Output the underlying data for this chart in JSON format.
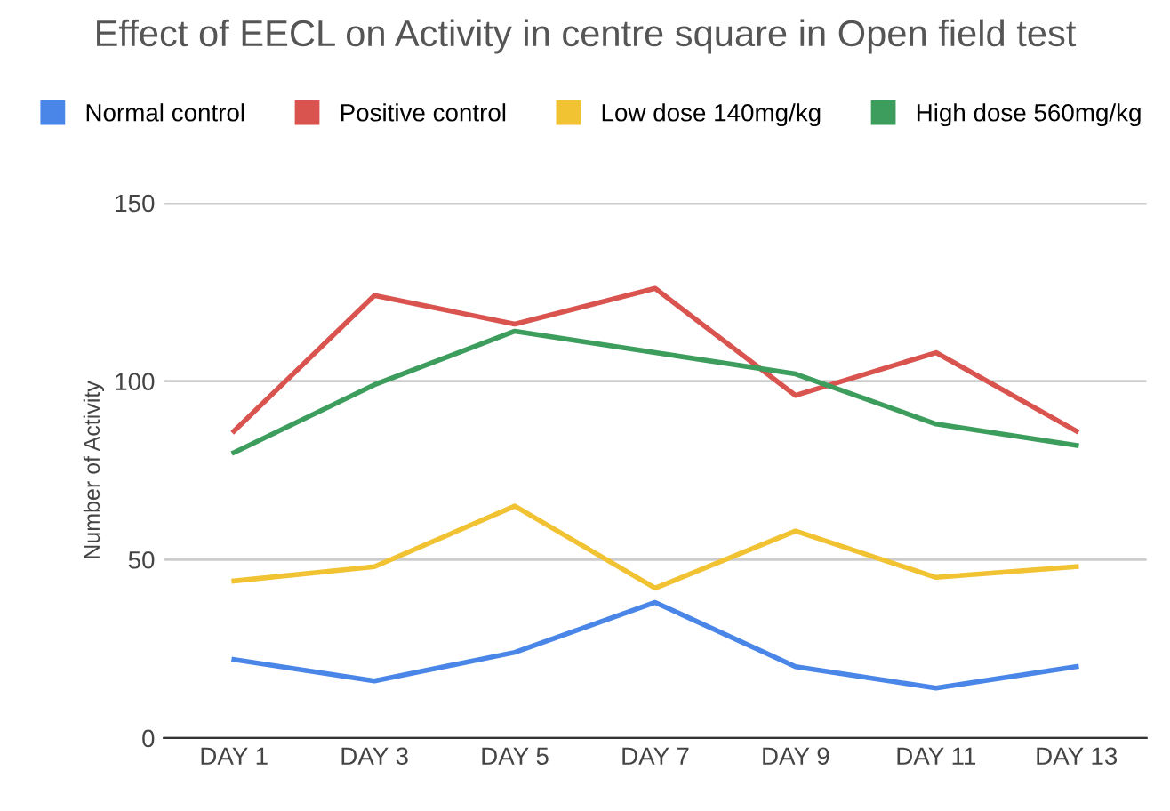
{
  "chart_data": {
    "type": "line",
    "title": "Effect of EECL on Activity in centre square in Open field test",
    "ylabel": "Number of Activity",
    "categories": [
      "DAY 1",
      "DAY 3",
      "DAY 5",
      "DAY 7",
      "DAY 9",
      "DAY 11",
      "DAY 13"
    ],
    "series": [
      {
        "name": "Normal control",
        "color": "#4a86e8",
        "values": [
          22,
          16,
          24,
          38,
          20,
          14,
          20
        ]
      },
      {
        "name": "Positive control",
        "color": "#d9534f",
        "values": [
          86,
          124,
          116,
          126,
          96,
          108,
          86
        ]
      },
      {
        "name": "Low dose 140mg/kg",
        "color": "#f1c232",
        "values": [
          44,
          48,
          65,
          42,
          58,
          45,
          48
        ]
      },
      {
        "name": "High dose 560mg/kg",
        "color": "#3c9d5d",
        "values": [
          80,
          99,
          114,
          108,
          102,
          88,
          82
        ]
      }
    ],
    "ylim": [
      0,
      150
    ],
    "yticks": [
      0,
      50,
      100,
      150
    ],
    "grid": "y",
    "legend": "top",
    "marker": "none",
    "line_style": "solid"
  }
}
